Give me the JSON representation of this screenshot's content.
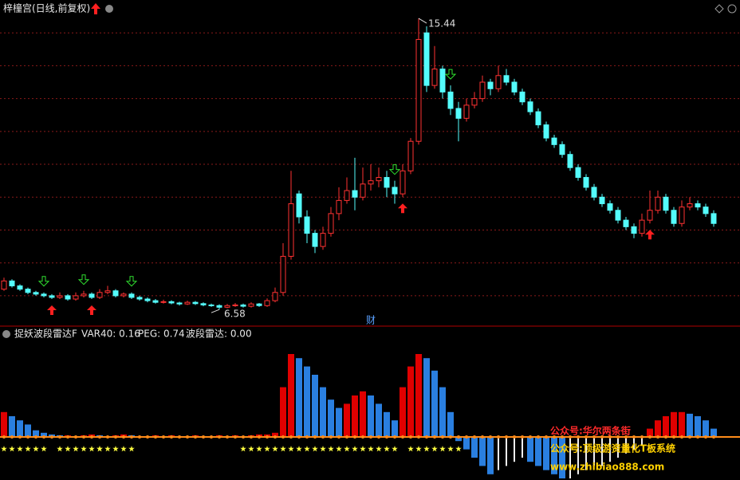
{
  "header": {
    "title": "梓橦宫(日线,前复权)",
    "indicator_name": "捉妖波段雷达F",
    "indicator_values": [
      "VAR40: 0.16",
      "PEG: 0.74",
      "波段雷达: 0.00"
    ],
    "finance_marker": "财"
  },
  "watermarks": [
    "公众号:华尔两条街",
    "公众号:顶级游资量化T板系统",
    "www.zhibiao888.com"
  ],
  "chart_data": [
    {
      "type": "candlestick",
      "open": [
        7.2,
        7.45,
        7.3,
        7.2,
        7.1,
        7.05,
        7.0,
        6.95,
        7.0,
        6.9,
        7.0,
        7.05,
        6.95,
        7.1,
        7.15,
        7.0,
        7.05,
        6.95,
        6.9,
        6.85,
        6.8,
        6.82,
        6.78,
        6.75,
        6.8,
        6.76,
        6.72,
        6.7,
        6.65,
        6.7,
        6.72,
        6.68,
        6.75,
        6.7,
        6.85,
        7.1,
        8.2,
        10.1,
        9.4,
        8.9,
        8.5,
        8.9,
        9.5,
        9.9,
        10.2,
        10.0,
        10.4,
        10.5,
        10.6,
        10.3,
        10.1,
        10.8,
        11.7,
        15.0,
        13.4,
        13.9,
        13.2,
        12.7,
        12.4,
        12.8,
        13.0,
        13.5,
        13.3,
        13.7,
        13.5,
        13.2,
        12.9,
        12.6,
        12.2,
        11.8,
        11.6,
        11.3,
        10.9,
        10.6,
        10.3,
        10.0,
        9.8,
        9.6,
        9.3,
        9.1,
        8.9,
        9.3,
        9.6,
        10.0,
        9.6,
        9.2,
        9.7,
        9.8,
        9.7,
        9.5
      ],
      "close": [
        7.45,
        7.3,
        7.2,
        7.1,
        7.05,
        7.0,
        6.95,
        7.0,
        6.9,
        7.0,
        7.05,
        6.95,
        7.1,
        7.15,
        7.0,
        7.05,
        6.95,
        6.9,
        6.85,
        6.8,
        6.82,
        6.78,
        6.75,
        6.8,
        6.76,
        6.72,
        6.7,
        6.65,
        6.7,
        6.72,
        6.68,
        6.75,
        6.7,
        6.85,
        7.1,
        8.2,
        9.8,
        9.4,
        8.9,
        8.5,
        8.9,
        9.5,
        9.9,
        10.2,
        10.0,
        10.4,
        10.5,
        10.6,
        10.3,
        10.1,
        10.8,
        11.7,
        14.8,
        13.4,
        13.9,
        13.2,
        12.7,
        12.4,
        12.8,
        13.0,
        13.5,
        13.3,
        13.7,
        13.5,
        13.2,
        12.9,
        12.6,
        12.2,
        11.8,
        11.6,
        11.3,
        10.9,
        10.6,
        10.3,
        10.0,
        9.8,
        9.6,
        9.3,
        9.1,
        8.9,
        9.3,
        9.6,
        10.0,
        9.6,
        9.2,
        9.7,
        9.8,
        9.7,
        9.5,
        9.2
      ],
      "high": [
        7.55,
        7.5,
        7.35,
        7.25,
        7.15,
        7.1,
        7.05,
        7.1,
        7.05,
        7.1,
        7.15,
        7.1,
        7.2,
        7.3,
        7.2,
        7.1,
        7.1,
        7.0,
        6.95,
        6.9,
        6.88,
        6.86,
        6.82,
        6.85,
        6.84,
        6.8,
        6.76,
        6.74,
        6.75,
        6.78,
        6.76,
        6.8,
        6.78,
        6.92,
        7.25,
        8.6,
        10.8,
        10.2,
        9.6,
        9.0,
        9.1,
        9.7,
        10.3,
        10.6,
        11.2,
        10.9,
        11.0,
        10.9,
        10.8,
        10.5,
        11.0,
        11.8,
        15.44,
        15.2,
        14.6,
        14.0,
        13.4,
        12.9,
        13.0,
        13.2,
        13.7,
        13.6,
        14.0,
        13.9,
        13.6,
        13.3,
        13.0,
        12.7,
        12.3,
        11.9,
        11.7,
        11.4,
        11.0,
        10.7,
        10.4,
        10.1,
        9.9,
        9.7,
        9.4,
        9.2,
        9.5,
        10.2,
        10.2,
        10.1,
        9.7,
        9.9,
        10.0,
        9.9,
        9.8,
        9.6
      ],
      "low": [
        7.15,
        7.25,
        7.15,
        7.05,
        7.0,
        6.95,
        6.9,
        6.9,
        6.85,
        6.85,
        6.95,
        6.9,
        6.9,
        7.05,
        6.95,
        6.95,
        6.9,
        6.85,
        6.8,
        6.76,
        6.76,
        6.74,
        6.7,
        6.72,
        6.72,
        6.68,
        6.66,
        6.58,
        6.62,
        6.66,
        6.64,
        6.64,
        6.66,
        6.66,
        6.8,
        7.0,
        8.1,
        9.2,
        8.6,
        8.3,
        8.4,
        8.8,
        9.3,
        9.8,
        9.6,
        9.9,
        10.2,
        10.3,
        10.0,
        9.8,
        10.0,
        10.7,
        11.6,
        13.2,
        13.3,
        13.0,
        12.5,
        11.7,
        12.3,
        12.7,
        12.9,
        13.1,
        13.2,
        13.4,
        13.1,
        12.8,
        12.5,
        12.1,
        11.7,
        11.5,
        11.2,
        10.8,
        10.5,
        10.2,
        9.9,
        9.7,
        9.5,
        9.2,
        9.0,
        8.75,
        8.8,
        9.2,
        9.5,
        9.5,
        9.1,
        9.1,
        9.6,
        9.6,
        9.4,
        9.1
      ],
      "ylim": [
        6.1,
        16.0
      ],
      "yticks": [
        7,
        8,
        9,
        10,
        11,
        12,
        13,
        14,
        15
      ],
      "grid": true,
      "up_color": "#ff3232",
      "down_color": "#54fcfc",
      "buy_signals": [
        6,
        11,
        50,
        81
      ],
      "sell_signals": [
        5,
        10,
        16,
        49,
        56
      ],
      "max_label_index": 52,
      "min_label_index": 27,
      "finance_index": 46
    },
    {
      "type": "bar",
      "values": [
        30,
        25,
        20,
        15,
        8,
        5,
        3,
        2,
        2,
        1,
        2,
        3,
        2,
        1,
        2,
        3,
        2,
        1,
        1,
        2,
        1,
        2,
        1,
        1,
        2,
        1,
        1,
        2,
        1,
        2,
        1,
        2,
        3,
        3,
        5,
        60,
        100,
        95,
        85,
        75,
        60,
        45,
        35,
        40,
        50,
        55,
        50,
        40,
        30,
        20,
        60,
        85,
        100,
        95,
        80,
        60,
        30,
        -5,
        -15,
        -25,
        -35,
        -45,
        -40,
        -35,
        -30,
        -25,
        -30,
        -35,
        -40,
        -45,
        -50,
        -50,
        -45,
        -40,
        -35,
        -35,
        -30,
        -25,
        -20,
        -15,
        -10,
        10,
        20,
        25,
        30,
        30,
        28,
        25,
        20,
        10
      ],
      "ylim": [
        -50,
        125
      ],
      "rise_color": "#e00000",
      "fall_color": "#2a7fe0",
      "zero_color": "#ff8c1a",
      "star_signals": [
        [
          0,
          5
        ],
        [
          7,
          12
        ],
        [
          12,
          16
        ],
        [
          30,
          49
        ],
        [
          51,
          57
        ]
      ],
      "star_color": "#ffff40"
    }
  ]
}
